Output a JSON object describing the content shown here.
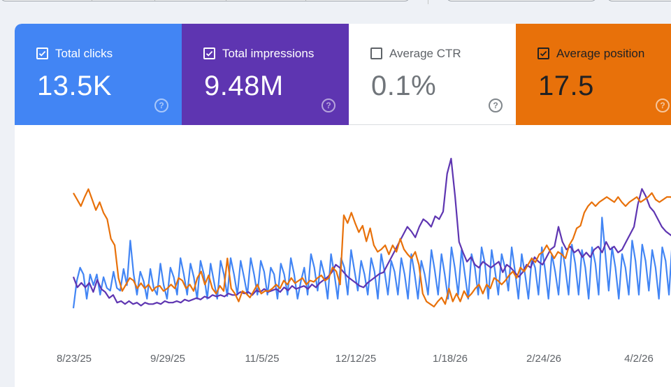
{
  "metrics": [
    {
      "label": "Total clicks",
      "value": "13.5K",
      "checked": true
    },
    {
      "label": "Total impressions",
      "value": "9.48M",
      "checked": true
    },
    {
      "label": "Average CTR",
      "value": "0.1%",
      "checked": false
    },
    {
      "label": "Average position",
      "value": "17.5",
      "checked": true
    }
  ],
  "help_glyph": "?",
  "colors": {
    "clicks": "#4285f4",
    "impressions": "#5e35b1",
    "ctr": "#ffffff",
    "position": "#e8710a"
  },
  "chart_data": {
    "type": "line",
    "x_tick_labels": [
      "8/23/25",
      "9/29/25",
      "11/5/25",
      "12/12/25",
      "1/18/26",
      "2/24/26",
      "4/2/26"
    ],
    "grid": false,
    "legend": "none",
    "series": [
      {
        "name": "Total clicks",
        "color": "#4285f4",
        "values": [
          0.05,
          0.25,
          0.35,
          0.3,
          0.12,
          0.3,
          0.22,
          0.3,
          0.15,
          0.28,
          0.2,
          0.18,
          0.32,
          0.2,
          0.18,
          0.34,
          0.22,
          0.55,
          0.3,
          0.15,
          0.32,
          0.25,
          0.12,
          0.34,
          0.2,
          0.15,
          0.38,
          0.22,
          0.12,
          0.35,
          0.28,
          0.15,
          0.42,
          0.3,
          0.15,
          0.38,
          0.28,
          0.12,
          0.4,
          0.3,
          0.12,
          0.38,
          0.25,
          0.12,
          0.4,
          0.3,
          0.14,
          0.42,
          0.3,
          0.15,
          0.4,
          0.28,
          0.15,
          0.42,
          0.3,
          0.15,
          0.4,
          0.32,
          0.15,
          0.35,
          0.3,
          0.12,
          0.38,
          0.3,
          0.15,
          0.42,
          0.3,
          0.12,
          0.25,
          0.35,
          0.15,
          0.45,
          0.35,
          0.18,
          0.4,
          0.3,
          0.12,
          0.45,
          0.3,
          0.12,
          0.42,
          0.35,
          0.15,
          0.48,
          0.33,
          0.18,
          0.4,
          0.3,
          0.15,
          0.42,
          0.32,
          0.12,
          0.45,
          0.32,
          0.15,
          0.4,
          0.32,
          0.15,
          0.42,
          0.3,
          0.12,
          0.45,
          0.3,
          0.12,
          0.4,
          0.3,
          0.15,
          0.48,
          0.33,
          0.15,
          0.45,
          0.3,
          0.12,
          0.5,
          0.35,
          0.15,
          0.48,
          0.3,
          0.12,
          0.45,
          0.35,
          0.15,
          0.5,
          0.38,
          0.12,
          0.48,
          0.33,
          0.15,
          0.45,
          0.35,
          0.18,
          0.5,
          0.32,
          0.12,
          0.45,
          0.3,
          0.12,
          0.42,
          0.35,
          0.15,
          0.5,
          0.33,
          0.12,
          0.45,
          0.32,
          0.15,
          0.5,
          0.35,
          0.15,
          0.52,
          0.38,
          0.15,
          0.48,
          0.35,
          0.12,
          0.5,
          0.38,
          0.15,
          0.72,
          0.45,
          0.18,
          0.5,
          0.35,
          0.12,
          0.45,
          0.35,
          0.15,
          0.55,
          0.4,
          0.15,
          0.52,
          0.4,
          0.18,
          0.48,
          0.35,
          0.12,
          0.5,
          0.4,
          0.15,
          0.55,
          0.4,
          0.12,
          0.5,
          0.3
        ]
      },
      {
        "name": "Total impressions",
        "color": "#5e35b1",
        "values": [
          0.22,
          0.15,
          0.18,
          0.15,
          0.18,
          0.12,
          0.2,
          0.14,
          0.12,
          0.08,
          0.1,
          0.05,
          0.06,
          0.04,
          0.06,
          0.04,
          0.05,
          0.03,
          0.05,
          0.04,
          0.04,
          0.05,
          0.04,
          0.06,
          0.05,
          0.05,
          0.06,
          0.05,
          0.07,
          0.06,
          0.07,
          0.08,
          0.07,
          0.09,
          0.08,
          0.1,
          0.09,
          0.1,
          0.09,
          0.11,
          0.1,
          0.1,
          0.12,
          0.11,
          0.12,
          0.1,
          0.13,
          0.12,
          0.14,
          0.12,
          0.13,
          0.14,
          0.12,
          0.15,
          0.13,
          0.16,
          0.14,
          0.15,
          0.16,
          0.14,
          0.17,
          0.15,
          0.18,
          0.2,
          0.22,
          0.25,
          0.3,
          0.28,
          0.25,
          0.22,
          0.2,
          0.18,
          0.16,
          0.15,
          0.18,
          0.2,
          0.22,
          0.24,
          0.25,
          0.3,
          0.35,
          0.4,
          0.45,
          0.5,
          0.55,
          0.52,
          0.48,
          0.55,
          0.6,
          0.58,
          0.55,
          0.62,
          0.6,
          0.65,
          0.9,
          1.0,
          0.75,
          0.45,
          0.38,
          0.32,
          0.35,
          0.3,
          0.28,
          0.32,
          0.3,
          0.28,
          0.3,
          0.32,
          0.25,
          0.3,
          0.28,
          0.25,
          0.22,
          0.25,
          0.3,
          0.28,
          0.35,
          0.32,
          0.3,
          0.35,
          0.4,
          0.42,
          0.55,
          0.45,
          0.4,
          0.42,
          0.38,
          0.4,
          0.35,
          0.38,
          0.35,
          0.4,
          0.42,
          0.38,
          0.45,
          0.4,
          0.42,
          0.38,
          0.4,
          0.45,
          0.5,
          0.55,
          0.7,
          0.8,
          0.75,
          0.68,
          0.65,
          0.6,
          0.55,
          0.52,
          0.5,
          0.48,
          0.5,
          0.45,
          0.42
        ]
      },
      {
        "name": "Average position",
        "color": "#e8710a",
        "values": [
          0.95,
          0.9,
          0.85,
          0.92,
          0.98,
          0.9,
          0.82,
          0.88,
          0.8,
          0.75,
          0.6,
          0.55,
          0.3,
          0.2,
          0.25,
          0.3,
          0.28,
          0.22,
          0.26,
          0.22,
          0.25,
          0.2,
          0.23,
          0.24,
          0.2,
          0.22,
          0.25,
          0.22,
          0.3,
          0.28,
          0.22,
          0.25,
          0.2,
          0.3,
          0.35,
          0.25,
          0.32,
          0.22,
          0.18,
          0.24,
          0.2,
          0.45,
          0.22,
          0.18,
          0.12,
          0.2,
          0.18,
          0.15,
          0.2,
          0.25,
          0.18,
          0.2,
          0.2,
          0.22,
          0.25,
          0.22,
          0.28,
          0.25,
          0.3,
          0.26,
          0.28,
          0.3,
          0.25,
          0.28,
          0.27,
          0.3,
          0.32,
          0.28,
          0.3,
          0.38,
          0.35,
          0.25,
          0.78,
          0.72,
          0.8,
          0.72,
          0.65,
          0.7,
          0.58,
          0.68,
          0.55,
          0.5,
          0.52,
          0.55,
          0.48,
          0.55,
          0.5,
          0.6,
          0.52,
          0.48,
          0.45,
          0.5,
          0.4,
          0.18,
          0.12,
          0.1,
          0.08,
          0.12,
          0.15,
          0.1,
          0.22,
          0.12,
          0.18,
          0.12,
          0.2,
          0.15,
          0.18,
          0.22,
          0.25,
          0.18,
          0.25,
          0.22,
          0.3,
          0.28,
          0.25,
          0.28,
          0.32,
          0.35,
          0.3,
          0.38,
          0.35,
          0.4,
          0.45,
          0.42,
          0.48,
          0.5,
          0.55,
          0.5,
          0.45,
          0.5,
          0.48,
          0.45,
          0.55,
          0.6,
          0.68,
          0.7,
          0.8,
          0.85,
          0.88,
          0.85,
          0.88,
          0.9,
          0.92,
          0.9,
          0.88,
          0.92,
          0.88,
          0.85,
          0.88,
          0.9,
          0.92,
          0.88,
          0.9,
          0.92,
          0.95,
          0.9,
          0.88,
          0.9,
          0.92,
          0.92,
          0.9,
          0.88,
          0.9,
          0.85
        ]
      }
    ]
  }
}
